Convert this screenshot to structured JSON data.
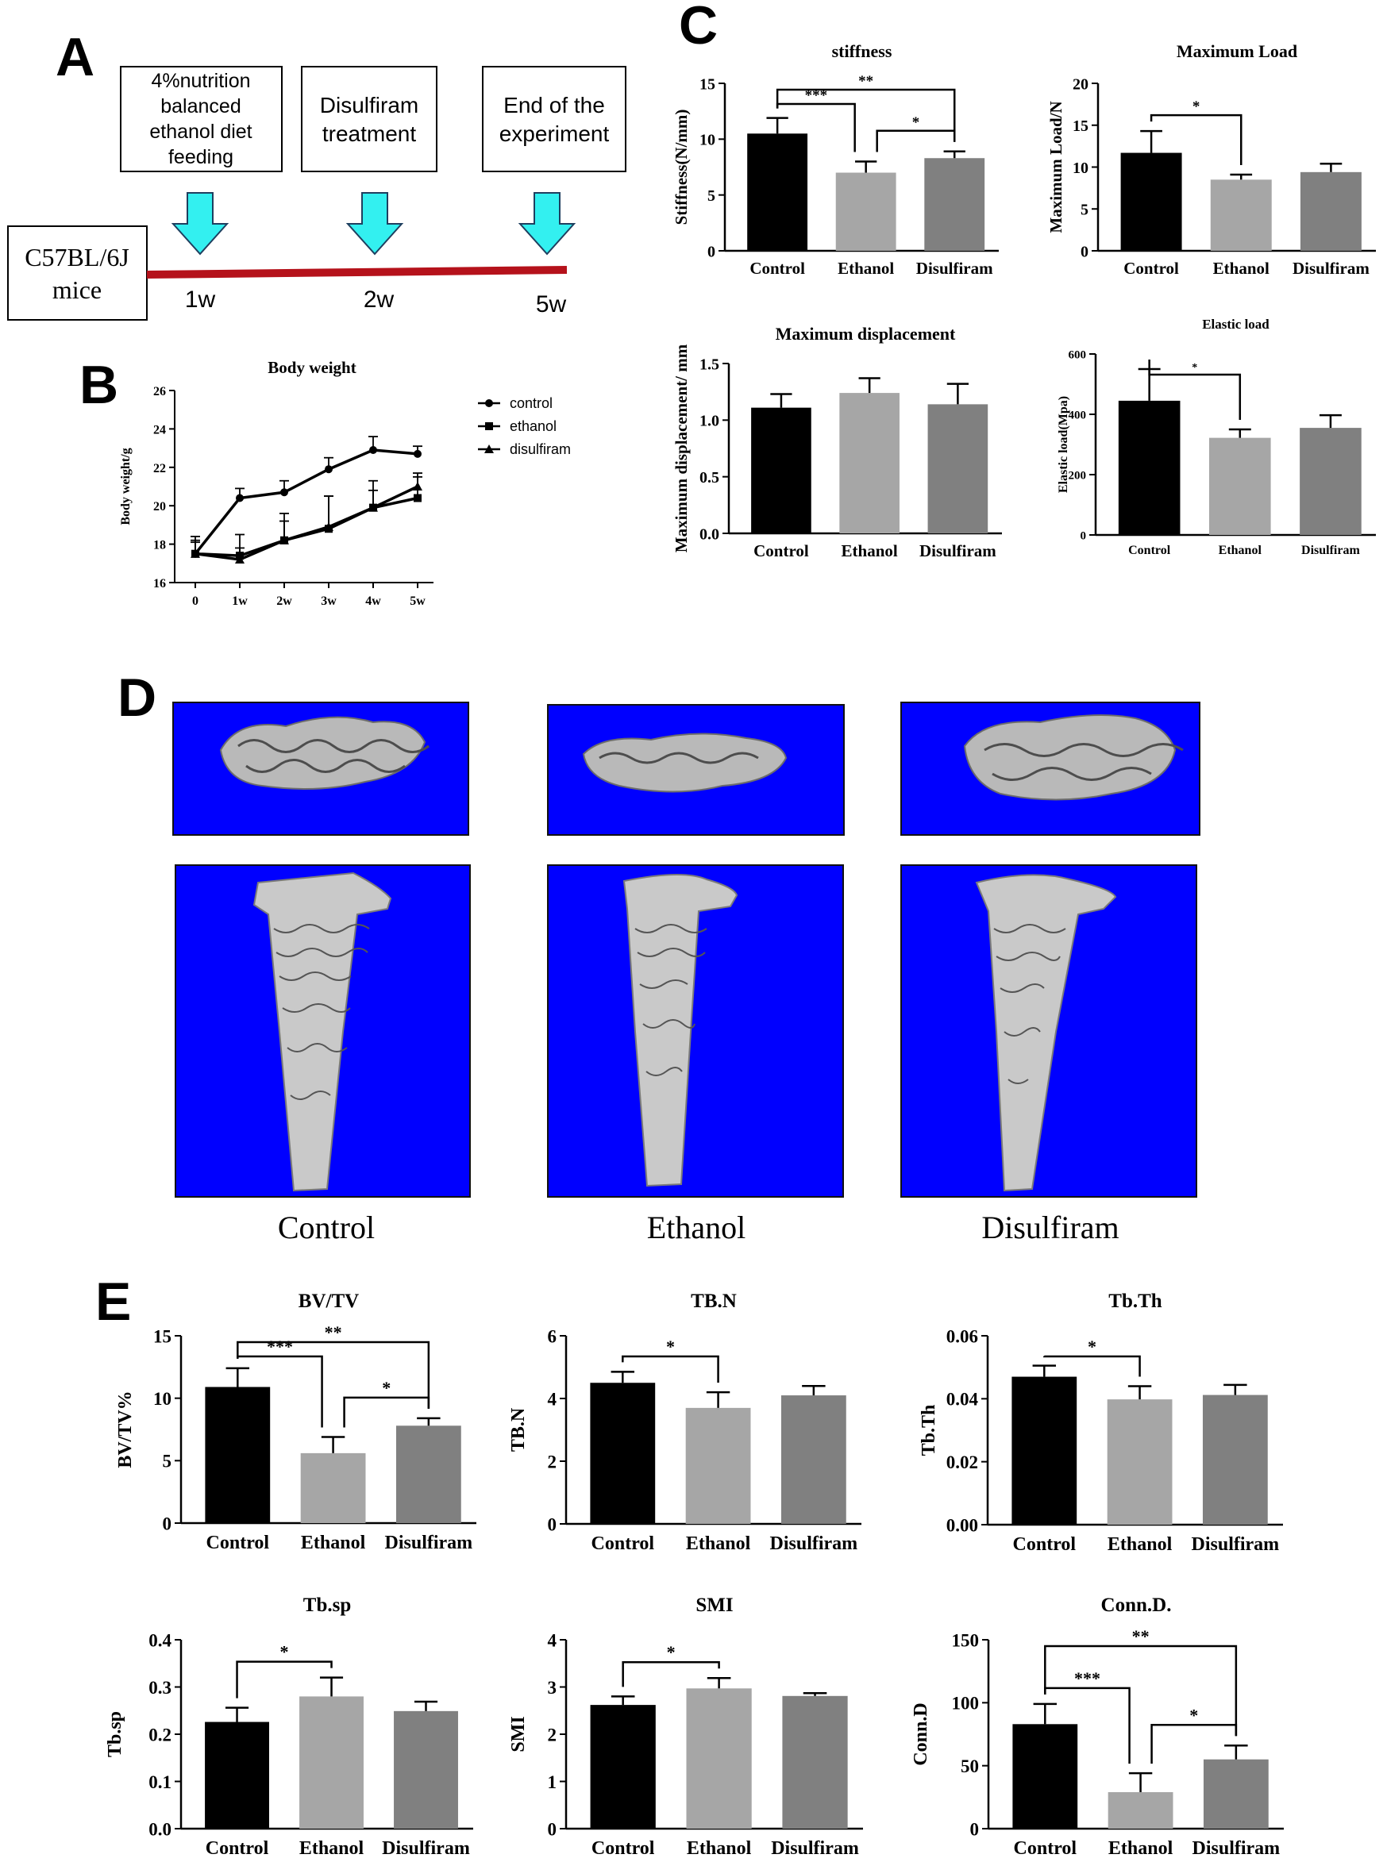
{
  "panels": {
    "A": "A",
    "B": "B",
    "C": "C",
    "D": "D",
    "E": "E"
  },
  "timeline": {
    "boxes": [
      "4%nutrition balanced ethanol diet feeding",
      "Disulfiram treatment",
      "End of the experiment"
    ],
    "box_lines": [
      [
        "4%nutrition",
        "balanced",
        "ethanol diet",
        "feeding"
      ],
      [
        "Disulfiram",
        "treatment"
      ],
      [
        "End of the",
        "experiment"
      ]
    ],
    "mice_lines": [
      "C57BL/6J",
      "mice"
    ],
    "weeks": [
      "1w",
      "2w",
      "5w"
    ],
    "arrow_color": "#33f0f0",
    "line_color": "#b5121b"
  },
  "images": {
    "labels": [
      "Control",
      "Ethanol",
      "Disulfiram"
    ],
    "background_color": "#0000ff"
  },
  "colors": {
    "Control": "#000000",
    "Ethanol": "#a6a6a6",
    "Disulfiram": "#808080"
  },
  "chart_data": [
    {
      "id": "body-weight",
      "type": "line",
      "title": "Body weight",
      "ylabel": "Body weight/g",
      "xlabel": "",
      "x": [
        "0",
        "1w",
        "2w",
        "3w",
        "4w",
        "5w"
      ],
      "ylim": [
        16,
        26
      ],
      "yticks": [
        16,
        18,
        20,
        22,
        24,
        26
      ],
      "legend": "right",
      "series": [
        {
          "name": "control",
          "marker": "circle",
          "values": [
            17.5,
            20.4,
            20.7,
            21.9,
            22.9,
            22.7
          ],
          "errors": [
            0.6,
            0.5,
            0.6,
            0.6,
            0.7,
            0.4
          ]
        },
        {
          "name": "ethanol",
          "marker": "square",
          "values": [
            17.5,
            17.4,
            18.2,
            18.8,
            19.9,
            20.4
          ],
          "errors": [
            0.7,
            1.1,
            1.4,
            1.7,
            1.4,
            1.1
          ]
        },
        {
          "name": "disulfiram",
          "marker": "triangle",
          "values": [
            17.5,
            17.2,
            18.2,
            18.9,
            19.9,
            21.0
          ],
          "errors": [
            0.9,
            0.6,
            1.0,
            1.6,
            0.9,
            0.7
          ]
        }
      ]
    },
    {
      "id": "stiffness",
      "type": "bar",
      "title": "stiffness",
      "ylabel": "Stiffness(N/mm)",
      "categories": [
        "Control",
        "Ethanol",
        "Disulfiram"
      ],
      "values": [
        10.5,
        7.0,
        8.3
      ],
      "errors": [
        1.4,
        1.0,
        0.6
      ],
      "ylim": [
        0,
        15
      ],
      "yticks": [
        "0",
        "5",
        "10",
        "15"
      ],
      "significance": [
        {
          "from": 0,
          "to": 1,
          "label": "***"
        },
        {
          "from": 0,
          "to": 2,
          "label": "**"
        },
        {
          "from": 1,
          "to": 2,
          "label": "*"
        }
      ]
    },
    {
      "id": "maximum-load",
      "type": "bar",
      "title": "Maximum Load",
      "ylabel": "Maximum Load/N",
      "categories": [
        "Control",
        "Ethanol",
        "Disulfiram"
      ],
      "values": [
        11.7,
        8.5,
        9.4
      ],
      "errors": [
        2.6,
        0.6,
        1.0
      ],
      "ylim": [
        0,
        20
      ],
      "yticks": [
        "0",
        "5",
        "10",
        "15",
        "20"
      ],
      "significance": [
        {
          "from": 0,
          "to": 1,
          "label": "*"
        }
      ]
    },
    {
      "id": "maximum-displacement",
      "type": "bar",
      "title": "Maximum displacement",
      "ylabel": "Maximum displacement/ mm",
      "categories": [
        "Control",
        "Ethanol",
        "Disulfiram"
      ],
      "values": [
        1.11,
        1.24,
        1.14
      ],
      "errors": [
        0.12,
        0.13,
        0.18
      ],
      "ylim": [
        0,
        1.5
      ],
      "yticks": [
        "0.0",
        "0.5",
        "1.0",
        "1.5"
      ],
      "significance": []
    },
    {
      "id": "elastic-load",
      "type": "bar",
      "title": "Elastic load",
      "ylabel": "Elastic load(Mpa)",
      "categories": [
        "Control",
        "Ethanol",
        "Disulfiram"
      ],
      "values": [
        445,
        322,
        355
      ],
      "errors": [
        105,
        28,
        42
      ],
      "ylim": [
        0,
        600
      ],
      "yticks": [
        "0",
        "200",
        "400",
        "600"
      ],
      "significance": [
        {
          "from": 0,
          "to": 1,
          "label": "*"
        }
      ]
    },
    {
      "id": "bv-tv",
      "type": "bar",
      "title": "BV/TV",
      "ylabel": "BV/TV%",
      "categories": [
        "Control",
        "Ethanol",
        "Disulfiram"
      ],
      "values": [
        10.9,
        5.6,
        7.8
      ],
      "errors": [
        1.5,
        1.3,
        0.6
      ],
      "ylim": [
        0,
        15
      ],
      "yticks": [
        "0",
        "5",
        "10",
        "15"
      ],
      "significance": [
        {
          "from": 0,
          "to": 1,
          "label": "***"
        },
        {
          "from": 0,
          "to": 2,
          "label": "**"
        },
        {
          "from": 1,
          "to": 2,
          "label": "*"
        }
      ]
    },
    {
      "id": "tb-n",
      "type": "bar",
      "title": "TB.N",
      "ylabel": "TB.N",
      "categories": [
        "Control",
        "Ethanol",
        "Disulfiram"
      ],
      "values": [
        4.5,
        3.7,
        4.1
      ],
      "errors": [
        0.35,
        0.5,
        0.3
      ],
      "ylim": [
        0,
        6
      ],
      "yticks": [
        "0",
        "2",
        "4",
        "6"
      ],
      "significance": [
        {
          "from": 0,
          "to": 1,
          "label": "*"
        }
      ]
    },
    {
      "id": "tb-th",
      "type": "bar",
      "title": "Tb.Th",
      "ylabel": "Tb.Th",
      "categories": [
        "Control",
        "Ethanol",
        "Disulfiram"
      ],
      "values": [
        0.047,
        0.0398,
        0.0412
      ],
      "errors": [
        0.0035,
        0.0042,
        0.0032
      ],
      "ylim": [
        0,
        0.06
      ],
      "yticks": [
        "0.00",
        "0.02",
        "0.04",
        "0.06"
      ],
      "significance": [
        {
          "from": 0,
          "to": 1,
          "label": "*"
        }
      ]
    },
    {
      "id": "tb-sp",
      "type": "bar",
      "title": "Tb.sp",
      "ylabel": "Tb.sp",
      "categories": [
        "Control",
        "Ethanol",
        "Disulfiram"
      ],
      "values": [
        0.226,
        0.28,
        0.249
      ],
      "errors": [
        0.03,
        0.04,
        0.02
      ],
      "ylim": [
        0,
        0.4
      ],
      "yticks": [
        "0.0",
        "0.1",
        "0.2",
        "0.3",
        "0.4"
      ],
      "significance": [
        {
          "from": 0,
          "to": 1,
          "label": "*"
        }
      ]
    },
    {
      "id": "smi",
      "type": "bar",
      "title": "SMI",
      "ylabel": "SMI",
      "categories": [
        "Control",
        "Ethanol",
        "Disulfiram"
      ],
      "values": [
        2.62,
        2.97,
        2.81
      ],
      "errors": [
        0.18,
        0.22,
        0.06
      ],
      "ylim": [
        0,
        4
      ],
      "yticks": [
        "0",
        "1",
        "2",
        "3",
        "4"
      ],
      "significance": [
        {
          "from": 0,
          "to": 1,
          "label": "*"
        }
      ]
    },
    {
      "id": "conn-d",
      "type": "bar",
      "title": "Conn.D.",
      "ylabel": "Conn.D",
      "categories": [
        "Control",
        "Ethanol",
        "Disulfiram"
      ],
      "values": [
        83,
        29,
        55
      ],
      "errors": [
        16,
        15,
        11
      ],
      "ylim": [
        0,
        150
      ],
      "yticks": [
        "0",
        "50",
        "100",
        "150"
      ],
      "significance": [
        {
          "from": 0,
          "to": 1,
          "label": "***"
        },
        {
          "from": 0,
          "to": 2,
          "label": "**"
        },
        {
          "from": 1,
          "to": 2,
          "label": "*"
        }
      ]
    }
  ]
}
